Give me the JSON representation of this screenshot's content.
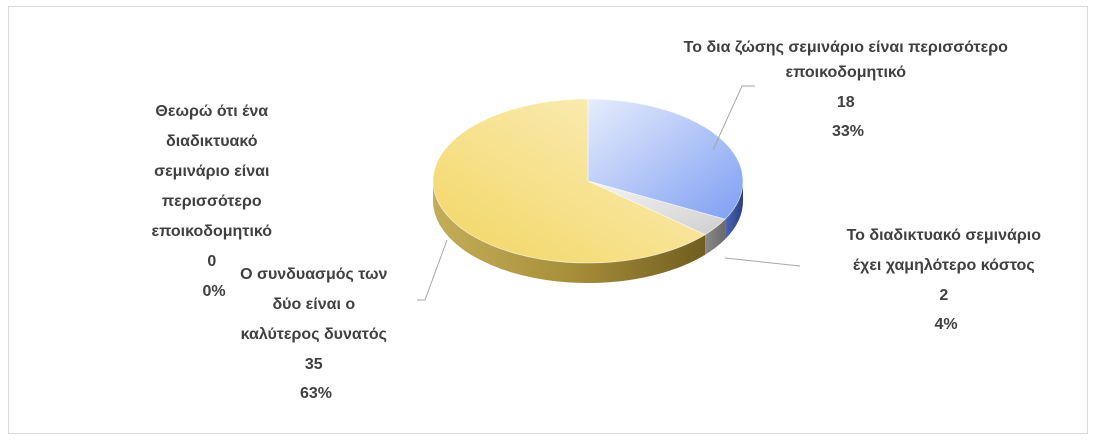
{
  "chart_data": {
    "type": "pie",
    "title": "",
    "legend": "none",
    "slices": [
      {
        "label_lines": [
          "Το δια ζώσης σεμινάριο είναι περισσότερο",
          "εποικοδομητικό"
        ],
        "value": 18,
        "percent": "33%",
        "color": "#8faaf0"
      },
      {
        "label_lines": [
          "Το διαδικτυακό σεμινάριο",
          "έχει χαμηλότερο κόστος"
        ],
        "value": 2,
        "percent": "4%",
        "color": "#e3e3e3"
      },
      {
        "label_lines": [
          "Ο συνδυασμός των",
          "δύο είναι ο",
          "καλύτερος δυνατός"
        ],
        "value": 35,
        "percent": "63%",
        "color": "#f7dd7a"
      },
      {
        "label_lines": [
          "Θεωρώ ότι ένα",
          "διαδικτυακό",
          "σεμινάριο είναι",
          "περισσότερο",
          "εποικοδομητικό"
        ],
        "value": 0,
        "percent": "0%",
        "color": "#c9a860"
      }
    ]
  }
}
